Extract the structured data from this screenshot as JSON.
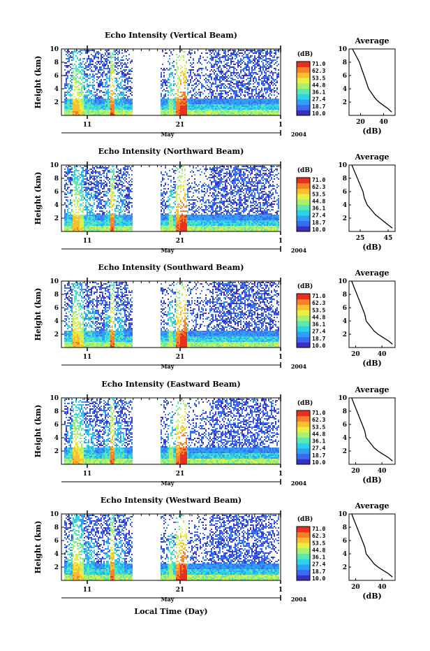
{
  "colormap": [
    "#3a2fbf",
    "#3a6bf0",
    "#2fa0f5",
    "#2cd2e6",
    "#5ce8b0",
    "#a8f070",
    "#e8f048",
    "#f8c030",
    "#f88028",
    "#e83020"
  ],
  "month_label": "May",
  "year_label": "2004",
  "day_ticks": [
    "11",
    "21",
    "1"
  ],
  "x_axis_title": "Local Time (Day)",
  "y_axis_title": "Height (km)",
  "height_ticks": [
    "2",
    "4",
    "6",
    "8",
    "10"
  ],
  "colorbar_unit": "(dB)",
  "colorbar_ticks": [
    "71.0",
    "62.3",
    "53.5",
    "44.8",
    "36.1",
    "27.4",
    "18.7",
    "10.0"
  ],
  "avg_title": "Average",
  "avg_xlabel": "(dB)",
  "chart_data": [
    {
      "type": "heatmap",
      "title": "Echo Intensity (Vertical Beam)",
      "ylabel": "Height (km)",
      "xlabel": "Local Time (Day)",
      "ylim": [
        0,
        10
      ],
      "colorbar_range": [
        10.0,
        71.0
      ],
      "avg": {
        "title": "Average",
        "xticks": [
          "20",
          "40"
        ],
        "xlim": [
          10,
          50
        ],
        "x": [
          47,
          44,
          40,
          36,
          33,
          31,
          29,
          27,
          25,
          23,
          21,
          19,
          16,
          13
        ],
        "y": [
          0.5,
          1,
          1.5,
          2,
          2.5,
          3,
          3.5,
          4,
          5,
          6,
          7,
          8,
          9,
          10
        ]
      }
    },
    {
      "type": "heatmap",
      "title": "Echo Intensity (Northward Beam)",
      "ylabel": "Height (km)",
      "xlabel": "Local Time (Day)",
      "ylim": [
        0,
        10
      ],
      "colorbar_range": [
        10.0,
        71.0
      ],
      "avg": {
        "title": "Average",
        "xticks": [
          "25",
          "45"
        ],
        "xlim": [
          17,
          50
        ],
        "x": [
          48,
          45,
          42,
          39,
          36,
          34,
          32,
          30,
          28,
          27,
          25,
          23,
          21,
          19
        ],
        "y": [
          0.5,
          1,
          1.5,
          2,
          2.5,
          3,
          3.5,
          4,
          5,
          6,
          7,
          8,
          9,
          10
        ]
      }
    },
    {
      "type": "heatmap",
      "title": "Echo Intensity (Southward Beam)",
      "ylabel": "Height (km)",
      "xlabel": "Local Time (Day)",
      "ylim": [
        0,
        10
      ],
      "colorbar_range": [
        10.0,
        71.0
      ],
      "avg": {
        "title": "Average",
        "xticks": [
          "20",
          "40"
        ],
        "xlim": [
          15,
          50
        ],
        "x": [
          48,
          45,
          41,
          37,
          34,
          32,
          30,
          28,
          27,
          25,
          23,
          21,
          19,
          17
        ],
        "y": [
          0.5,
          1,
          1.5,
          2,
          2.5,
          3,
          3.5,
          4,
          5,
          6,
          7,
          8,
          9,
          10
        ]
      }
    },
    {
      "type": "heatmap",
      "title": "Echo Intensity (Eastward Beam)",
      "ylabel": "Height (km)",
      "xlabel": "Local Time (Day)",
      "ylim": [
        0,
        10
      ],
      "colorbar_range": [
        10.0,
        71.0
      ],
      "avg": {
        "title": "Average",
        "xticks": [
          "20",
          "40"
        ],
        "xlim": [
          15,
          50
        ],
        "x": [
          48,
          45,
          41,
          37,
          34,
          32,
          30,
          28,
          27,
          25,
          23,
          21,
          19,
          17
        ],
        "y": [
          0.5,
          1,
          1.5,
          2,
          2.5,
          3,
          3.5,
          4,
          5,
          6,
          7,
          8,
          9,
          10
        ]
      }
    },
    {
      "type": "heatmap",
      "title": "Echo Intensity (Westward Beam)",
      "ylabel": "Height (km)",
      "xlabel": "Local Time (Day)",
      "ylim": [
        0,
        10
      ],
      "colorbar_range": [
        10.0,
        71.0
      ],
      "avg": {
        "title": "Average",
        "xticks": [
          "20",
          "40"
        ],
        "xlim": [
          15,
          50
        ],
        "x": [
          48,
          45,
          41,
          37,
          34,
          32,
          30,
          28,
          27,
          25,
          23,
          21,
          19,
          17
        ],
        "y": [
          0.5,
          1,
          1.5,
          2,
          2.5,
          3,
          3.5,
          4,
          5,
          6,
          7,
          8,
          9,
          10
        ]
      }
    }
  ]
}
